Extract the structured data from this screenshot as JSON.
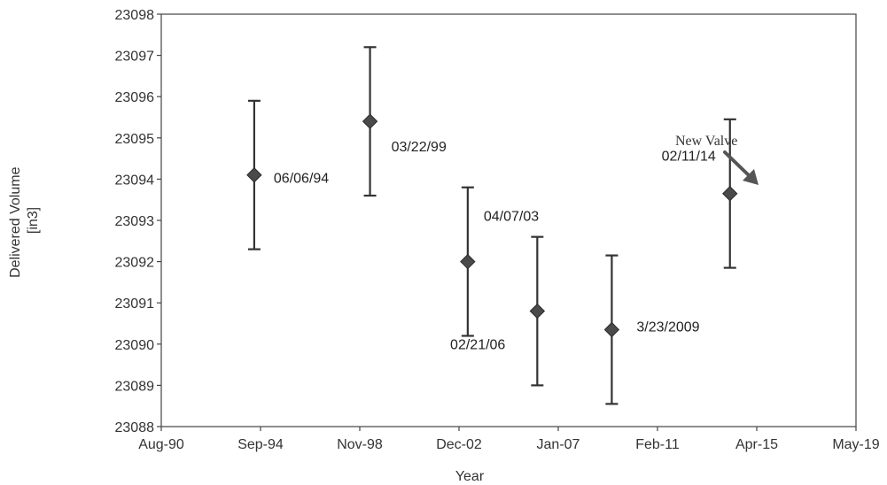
{
  "chart_data": {
    "type": "scatter",
    "title": "",
    "xlabel": "Year",
    "ylabel_lines": [
      "Delivered Volume",
      "[in3]"
    ],
    "x_ticks": [
      "Aug-90",
      "Sep-94",
      "Nov-98",
      "Dec-02",
      "Jan-07",
      "Feb-11",
      "Apr-15",
      "May-19"
    ],
    "xlim": [
      "1990-08",
      "2019-05"
    ],
    "y_ticks": [
      "23088",
      "23089",
      "23090",
      "23091",
      "23092",
      "23093",
      "23094",
      "23095",
      "23096",
      "23097",
      "23098"
    ],
    "ylim": [
      23088,
      23098
    ],
    "grid": false,
    "points": [
      {
        "date": "06/06/94",
        "y": 23094.1,
        "low": 23092.3,
        "high": 23095.9,
        "label": "06/06/94"
      },
      {
        "date": "03/22/99",
        "y": 23095.4,
        "low": 23093.6,
        "high": 23097.2,
        "label": "03/22/99"
      },
      {
        "date": "04/07/03",
        "y": 23092.0,
        "low": 23090.2,
        "high": 23093.8,
        "label": "04/07/03"
      },
      {
        "date": "02/21/06",
        "y": 23090.8,
        "low": 23089.0,
        "high": 23092.6,
        "label": "02/21/06"
      },
      {
        "date": "3/23/2009",
        "y": 23090.35,
        "low": 23088.55,
        "high": 23092.15,
        "label": "3/23/2009"
      },
      {
        "date": "02/11/14",
        "y": 23093.65,
        "low": 23091.85,
        "high": 23095.45,
        "label": "02/11/14"
      }
    ],
    "annotation": {
      "text": "New Valve"
    },
    "colors": {
      "marker": "#4a4a4a",
      "error_bar": "#333333",
      "axis": "#444444",
      "arrow": "#555555"
    }
  }
}
